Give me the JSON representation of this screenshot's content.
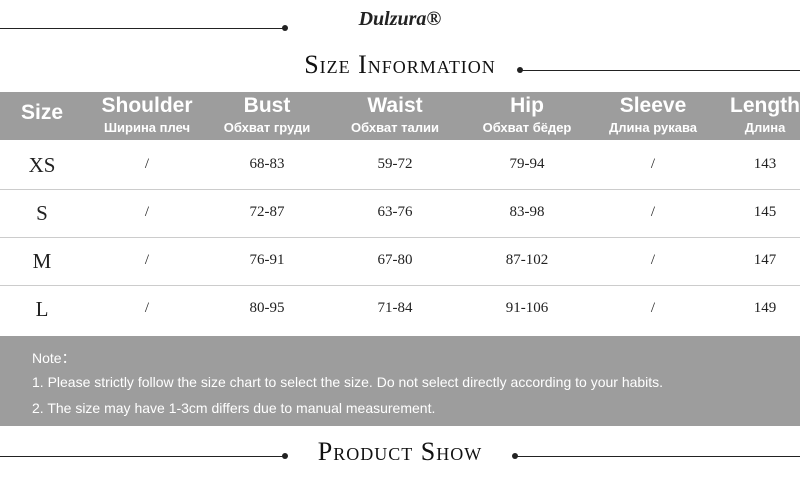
{
  "header": {
    "brand": "Dulzura®",
    "title": "Size Information"
  },
  "table": {
    "columns": [
      {
        "en": "Size",
        "ru": null
      },
      {
        "en": "Shoulder",
        "ru": "Ширина плеч"
      },
      {
        "en": "Bust",
        "ru": "Обхват груди"
      },
      {
        "en": "Waist",
        "ru": "Обхват талии"
      },
      {
        "en": "Hip",
        "ru": "Обхват бёдер"
      },
      {
        "en": "Sleeve",
        "ru": "Длина рукава"
      },
      {
        "en": "Length",
        "ru": "Длина"
      }
    ],
    "rows": [
      [
        "XS",
        "/",
        "68-83",
        "59-72",
        "79-94",
        "/",
        "143"
      ],
      [
        "S",
        "/",
        "72-87",
        "63-76",
        "83-98",
        "/",
        "145"
      ],
      [
        "M",
        "/",
        "76-91",
        "67-80",
        "87-102",
        "/",
        "147"
      ],
      [
        "L",
        "/",
        "80-95",
        "71-84",
        "91-106",
        "/",
        "149"
      ]
    ]
  },
  "note": {
    "title": "Note：",
    "lines": [
      "1. Please strictly follow the size chart to select the size. Do not select directly according to your habits.",
      "2. The size may have 1-3cm differs due to manual measurement."
    ]
  },
  "footer": {
    "title": "Product Show"
  }
}
